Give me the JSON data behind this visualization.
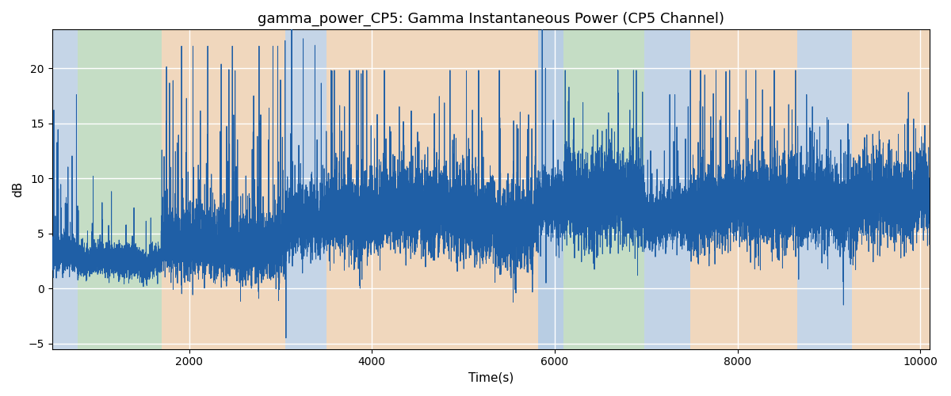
{
  "title": "gamma_power_CP5: Gamma Instantaneous Power (CP5 Channel)",
  "xlabel": "Time(s)",
  "ylabel": "dB",
  "xlim": [
    500,
    10100
  ],
  "ylim": [
    -5.5,
    23.5
  ],
  "xticks": [
    2000,
    4000,
    6000,
    8000,
    10000
  ],
  "yticks": [
    -5,
    0,
    5,
    10,
    15,
    20
  ],
  "figsize": [
    12.0,
    5.0
  ],
  "dpi": 100,
  "line_color": "#1f5fa6",
  "line_width": 0.7,
  "ax_bg_color": "#eaeaf4",
  "grid_color": "white",
  "bands": [
    {
      "xmin": 500,
      "xmax": 780,
      "color": "#a8c4de",
      "alpha": 0.55
    },
    {
      "xmin": 780,
      "xmax": 1700,
      "color": "#a8d4a0",
      "alpha": 0.55
    },
    {
      "xmin": 1700,
      "xmax": 3050,
      "color": "#f5c890",
      "alpha": 0.55
    },
    {
      "xmin": 3050,
      "xmax": 3500,
      "color": "#a8c4de",
      "alpha": 0.55
    },
    {
      "xmin": 3500,
      "xmax": 5820,
      "color": "#f5c890",
      "alpha": 0.55
    },
    {
      "xmin": 5820,
      "xmax": 6100,
      "color": "#a8c4de",
      "alpha": 0.75
    },
    {
      "xmin": 6100,
      "xmax": 6980,
      "color": "#a8d4a0",
      "alpha": 0.55
    },
    {
      "xmin": 6980,
      "xmax": 7480,
      "color": "#a8c4de",
      "alpha": 0.6
    },
    {
      "xmin": 7480,
      "xmax": 8650,
      "color": "#f5c890",
      "alpha": 0.55
    },
    {
      "xmin": 8650,
      "xmax": 9250,
      "color": "#a8c4de",
      "alpha": 0.55
    },
    {
      "xmin": 9250,
      "xmax": 10100,
      "color": "#f5c890",
      "alpha": 0.55
    }
  ],
  "seed": 17
}
